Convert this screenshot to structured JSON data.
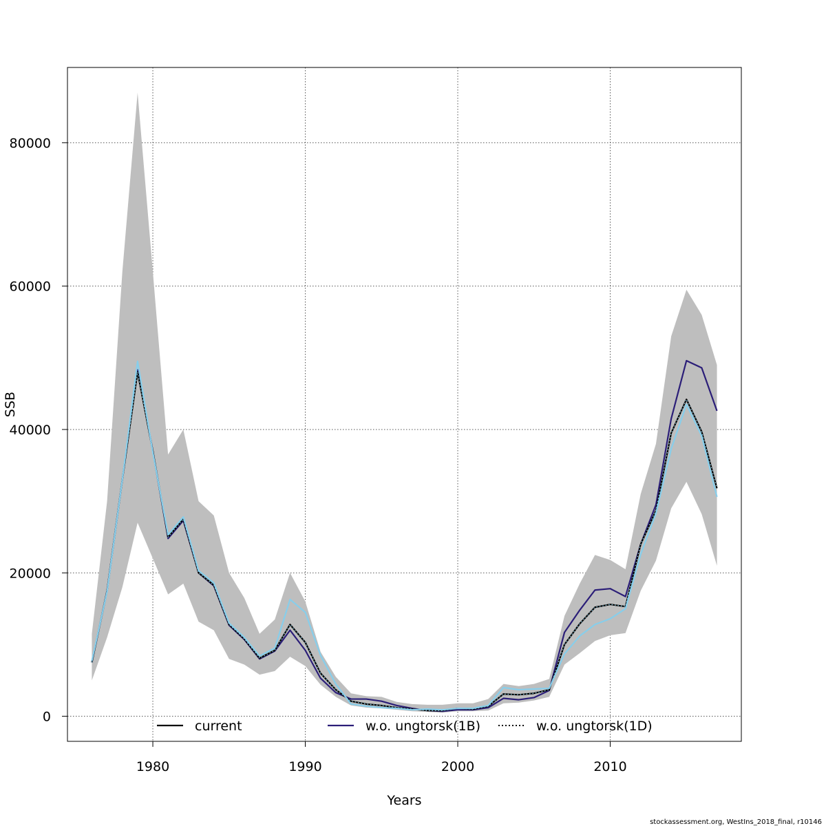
{
  "chart_data": {
    "type": "line",
    "xlabel": "Years",
    "ylabel": "SSB",
    "xlim": [
      1974.4,
      2018.6
    ],
    "ylim": [
      -3500,
      90500
    ],
    "x_ticks": [
      1980,
      1990,
      2000,
      2010
    ],
    "y_ticks": [
      0,
      20000,
      40000,
      60000,
      80000
    ],
    "grid": true,
    "legend_position": "bottom",
    "x": [
      1976,
      1977,
      1978,
      1979,
      1980,
      1981,
      1982,
      1983,
      1984,
      1985,
      1986,
      1987,
      1988,
      1989,
      1990,
      1991,
      1992,
      1993,
      1994,
      1995,
      1996,
      1997,
      1998,
      1999,
      2000,
      2001,
      2002,
      2003,
      2004,
      2005,
      2006,
      2007,
      2008,
      2009,
      2010,
      2011,
      2012,
      2013,
      2014,
      2015,
      2016,
      2017
    ],
    "confidence_band": {
      "color": "#bebebe",
      "upper": [
        11500,
        30000,
        62000,
        87000,
        62000,
        36500,
        40000,
        30000,
        28000,
        20000,
        16500,
        11500,
        13500,
        20000,
        16000,
        9000,
        5500,
        3200,
        2800,
        2700,
        2000,
        1700,
        1600,
        1600,
        1800,
        1800,
        2400,
        4500,
        4200,
        4500,
        5200,
        14000,
        18500,
        22500,
        21800,
        20500,
        31000,
        38000,
        53000,
        59500,
        56000,
        49000
      ],
      "lower": [
        5000,
        11000,
        18000,
        27000,
        22000,
        17000,
        18500,
        13200,
        12000,
        8000,
        7200,
        5800,
        6300,
        8300,
        7000,
        4400,
        2700,
        1500,
        1200,
        1100,
        900,
        700,
        600,
        500,
        700,
        700,
        800,
        1800,
        1900,
        2200,
        2700,
        7200,
        8800,
        10500,
        11300,
        11600,
        17500,
        21700,
        29000,
        32700,
        28200,
        21000
      ]
    },
    "series": [
      {
        "name": "current",
        "color": "#000000",
        "dash": "solid",
        "values": [
          7500,
          17500,
          33000,
          48000,
          37000,
          25000,
          27500,
          20000,
          18300,
          12800,
          10800,
          8100,
          9200,
          12800,
          10300,
          6000,
          3700,
          2100,
          1700,
          1500,
          1200,
          1000,
          800,
          800,
          1100,
          1000,
          1400,
          3100,
          3000,
          3200,
          3700,
          10000,
          12900,
          15200,
          15600,
          15300,
          24000,
          28700,
          39500,
          44200,
          39700,
          31800
        ]
      },
      {
        "name": "w.o. ungtorsk(1B)",
        "color": "#2b1e78",
        "dash": "solid",
        "values": [
          7500,
          17500,
          33000,
          48300,
          37000,
          24800,
          27300,
          20000,
          18200,
          12700,
          10700,
          8000,
          9100,
          12000,
          9200,
          5300,
          3300,
          2400,
          2400,
          2100,
          1500,
          1100,
          800,
          700,
          900,
          900,
          1200,
          2500,
          2300,
          2600,
          3600,
          11700,
          14800,
          17600,
          17800,
          16700,
          24000,
          29500,
          41500,
          49600,
          48600,
          42600
        ]
      },
      {
        "name": "w.o. ungtorsk(1D)",
        "color": "#87ceeb",
        "dash": "dotted",
        "values": [
          7700,
          17400,
          33000,
          49500,
          36800,
          25300,
          27800,
          20300,
          18600,
          13000,
          11000,
          8400,
          9500,
          16300,
          14500,
          8500,
          4500,
          1700,
          1400,
          1200,
          1100,
          900,
          1000,
          900,
          1100,
          1100,
          1500,
          4000,
          3700,
          3800,
          3900,
          8700,
          11200,
          12800,
          13600,
          15000,
          22600,
          28300,
          37300,
          43500,
          39100,
          30600
        ]
      }
    ]
  },
  "footer": "stockassessment.org, WestIns_2018_final, r10146"
}
